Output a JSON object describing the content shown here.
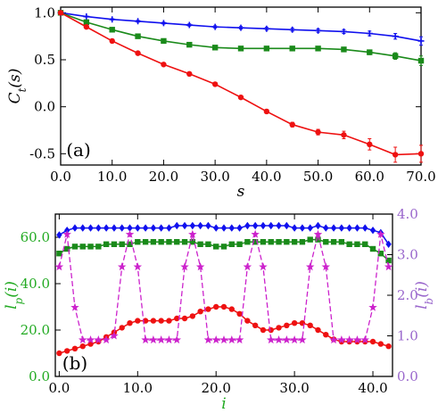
{
  "chart_data": [
    {
      "panel": "(a)",
      "type": "line",
      "xlabel": "s",
      "ylabel": "C_t(s)",
      "xlim": [
        0,
        70
      ],
      "ylim": [
        -0.62,
        1.06
      ],
      "xticks": [
        "0.0",
        "10.0",
        "20.0",
        "30.0",
        "40.0",
        "50.0",
        "60.0",
        "70.0"
      ],
      "yticks": [
        "-0.5",
        "0.0",
        "0.5",
        "1.0"
      ],
      "xtick_values": [
        0,
        10,
        20,
        30,
        40,
        50,
        60,
        70
      ],
      "ytick_values": [
        -0.5,
        0,
        0.5,
        1.0
      ],
      "grid": false,
      "colors": {
        "blue": "#1010ee",
        "green": "#1a8a1a",
        "red": "#ee1111"
      },
      "series": [
        {
          "color": "blue",
          "marker": "plus",
          "x": [
            0,
            5,
            10,
            15,
            20,
            25,
            30,
            35,
            40,
            45,
            50,
            55,
            60,
            65,
            70
          ],
          "y": [
            1.0,
            0.96,
            0.93,
            0.91,
            0.89,
            0.87,
            0.85,
            0.84,
            0.83,
            0.82,
            0.81,
            0.8,
            0.78,
            0.75,
            0.7
          ],
          "err": [
            0,
            0.005,
            0.008,
            0.01,
            0.01,
            0.012,
            0.012,
            0.014,
            0.015,
            0.016,
            0.018,
            0.02,
            0.025,
            0.03,
            0.045
          ]
        },
        {
          "color": "green",
          "marker": "square",
          "x": [
            0,
            5,
            10,
            15,
            20,
            25,
            30,
            35,
            40,
            45,
            50,
            55,
            60,
            65,
            70
          ],
          "y": [
            1.0,
            0.9,
            0.82,
            0.75,
            0.7,
            0.66,
            0.63,
            0.62,
            0.62,
            0.62,
            0.62,
            0.61,
            0.58,
            0.54,
            0.49
          ],
          "err": [
            0,
            0.005,
            0.008,
            0.01,
            0.01,
            0.012,
            0.012,
            0.014,
            0.015,
            0.016,
            0.018,
            0.02,
            0.025,
            0.035,
            0.05
          ]
        },
        {
          "color": "red",
          "marker": "circle",
          "x": [
            0,
            5,
            10,
            15,
            20,
            25,
            30,
            35,
            40,
            45,
            50,
            55,
            60,
            65,
            70
          ],
          "y": [
            1.0,
            0.85,
            0.7,
            0.57,
            0.45,
            0.35,
            0.24,
            0.1,
            -0.05,
            -0.19,
            -0.27,
            -0.3,
            -0.4,
            -0.51,
            -0.5
          ],
          "err": [
            0,
            0.005,
            0.008,
            0.01,
            0.012,
            0.014,
            0.016,
            0.018,
            0.02,
            0.025,
            0.03,
            0.04,
            0.06,
            0.08,
            0.09
          ]
        }
      ]
    },
    {
      "panel": "(b)",
      "type": "line",
      "xlabel": "i",
      "ylabel_left": "l_p(i)",
      "ylabel_right": "l_b(i)",
      "xlim": [
        -0.5,
        42.5
      ],
      "ylim_left": [
        0,
        70
      ],
      "ylim_right": [
        0,
        4.0
      ],
      "xticks": [
        "0.0",
        "10.0",
        "20.0",
        "30.0",
        "40.0"
      ],
      "yticks_left": [
        "0.0",
        "20.0",
        "40.0",
        "60.0"
      ],
      "yticks_right": [
        "0.0",
        "1.0",
        "2.0",
        "3.0",
        "4.0"
      ],
      "xtick_values": [
        0,
        10,
        20,
        30,
        40
      ],
      "ytick_left_values": [
        0,
        20,
        40,
        60
      ],
      "ytick_right_values": [
        0,
        1,
        2,
        3,
        4
      ],
      "grid": false,
      "colors": {
        "blue": "#1010ee",
        "green": "#1a8a1a",
        "red": "#ee1111",
        "magenta": "#cc22cc",
        "left_axis": "#22aa22",
        "right_axis": "#9966cc"
      },
      "series": [
        {
          "color": "blue",
          "marker": "diamond",
          "axis": "left",
          "x": [
            0,
            1,
            2,
            3,
            4,
            5,
            6,
            7,
            8,
            9,
            10,
            11,
            12,
            13,
            14,
            15,
            16,
            17,
            18,
            19,
            20,
            21,
            22,
            23,
            24,
            25,
            26,
            27,
            28,
            29,
            30,
            31,
            32,
            33,
            34,
            35,
            36,
            37,
            38,
            39,
            40,
            41,
            42
          ],
          "y": [
            61,
            63,
            64,
            64,
            64,
            64,
            64,
            64,
            64,
            64,
            64,
            64,
            64,
            64,
            64,
            65,
            65,
            65,
            65,
            65,
            64,
            64,
            64,
            64,
            65,
            65,
            65,
            65,
            65,
            65,
            64,
            64,
            64,
            65,
            64,
            64,
            64,
            64,
            64,
            64,
            63,
            62,
            57
          ]
        },
        {
          "color": "green",
          "marker": "square",
          "axis": "left",
          "x": [
            0,
            1,
            2,
            3,
            4,
            5,
            6,
            7,
            8,
            9,
            10,
            11,
            12,
            13,
            14,
            15,
            16,
            17,
            18,
            19,
            20,
            21,
            22,
            23,
            24,
            25,
            26,
            27,
            28,
            29,
            30,
            31,
            32,
            33,
            34,
            35,
            36,
            37,
            38,
            39,
            40,
            41,
            42
          ],
          "y": [
            53,
            55,
            56,
            56,
            56,
            56,
            57,
            57,
            57,
            57,
            58,
            58,
            58,
            58,
            58,
            58,
            58,
            58,
            57,
            57,
            56,
            56,
            57,
            57,
            58,
            58,
            58,
            58,
            58,
            58,
            58,
            58,
            59,
            59,
            58,
            58,
            58,
            57,
            57,
            57,
            55,
            53,
            50
          ]
        },
        {
          "color": "red",
          "marker": "circle",
          "axis": "left",
          "x": [
            0,
            1,
            2,
            3,
            4,
            5,
            6,
            7,
            8,
            9,
            10,
            11,
            12,
            13,
            14,
            15,
            16,
            17,
            18,
            19,
            20,
            21,
            22,
            23,
            24,
            25,
            26,
            27,
            28,
            29,
            30,
            31,
            32,
            33,
            34,
            35,
            36,
            37,
            38,
            39,
            40,
            41,
            42
          ],
          "y": [
            10,
            11,
            12,
            13,
            14,
            15,
            17,
            19,
            21,
            23,
            24,
            24,
            24,
            24,
            24,
            25,
            25,
            26,
            28,
            29,
            30,
            30,
            29,
            27,
            24,
            22,
            20,
            20,
            21,
            22,
            23,
            23,
            22,
            20,
            18,
            16,
            15,
            15,
            15,
            15,
            15,
            14,
            13
          ]
        },
        {
          "color": "magenta",
          "marker": "star",
          "axis": "right",
          "dashed": true,
          "x": [
            0,
            1,
            2,
            3,
            4,
            5,
            6,
            7,
            8,
            9,
            10,
            11,
            12,
            13,
            14,
            15,
            16,
            17,
            18,
            19,
            20,
            21,
            22,
            23,
            24,
            25,
            26,
            27,
            28,
            29,
            30,
            31,
            32,
            33,
            34,
            35,
            36,
            37,
            38,
            39,
            40,
            41,
            42
          ],
          "y": [
            2.7,
            3.5,
            1.7,
            0.9,
            0.9,
            0.9,
            0.9,
            1.0,
            2.7,
            3.5,
            2.7,
            0.9,
            0.9,
            0.9,
            0.9,
            0.9,
            2.7,
            3.5,
            2.7,
            0.9,
            0.9,
            0.9,
            0.9,
            0.9,
            2.7,
            3.5,
            2.7,
            0.9,
            0.9,
            0.9,
            0.9,
            0.9,
            2.7,
            3.5,
            2.7,
            0.9,
            0.9,
            0.9,
            0.9,
            0.9,
            1.7,
            3.5,
            2.7
          ]
        }
      ]
    }
  ]
}
